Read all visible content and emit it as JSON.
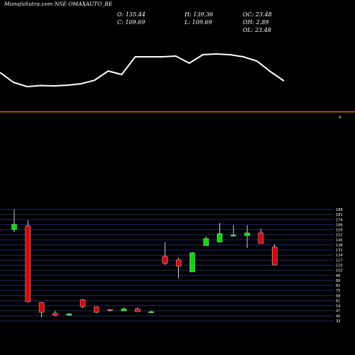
{
  "header": {
    "title": "MunafaSutra.com  NSE OMAXAUTO_BE",
    "open": "O: 135.44",
    "high": "H: 139.36",
    "oc": "OC: 23.48",
    "close": "C: 109.69",
    "low": "L: 109.69",
    "oh": "OH: 2.89",
    "ol": "OL: 23.48"
  },
  "indicator_panel": {
    "right_label": "4",
    "line_values": [
      40,
      53,
      68,
      74,
      77,
      78,
      77,
      65,
      75,
      74,
      74,
      74,
      49,
      54,
      41,
      36,
      34,
      33,
      33.5,
      32,
      38,
      52
    ]
  },
  "chart_data": {
    "type": "candlestick",
    "title": "NSE OMAXAUTO_BE",
    "ylim": [
      31,
      188
    ],
    "yticks": [
      "188",
      "181",
      "174",
      "166",
      "159",
      "152",
      "145",
      "138",
      "131",
      "124",
      "117",
      "110",
      "103",
      "96",
      "89",
      "82",
      "75",
      "68",
      "61",
      "54",
      "47",
      "40",
      "33"
    ],
    "grid": true,
    "up_color": "#00dd00",
    "down_color": "#dd0000",
    "candles": [
      {
        "open": 160,
        "high": 188,
        "low": 156,
        "close": 167
      },
      {
        "open": 165,
        "high": 173,
        "low": 57,
        "close": 58
      },
      {
        "open": 57,
        "high": 58,
        "low": 36,
        "close": 43
      },
      {
        "open": 42,
        "high": 45,
        "low": 38,
        "close": 39
      },
      {
        "open": 39,
        "high": 42,
        "low": 39,
        "close": 41
      },
      {
        "open": 61,
        "high": 62,
        "low": 49,
        "close": 51
      },
      {
        "open": 51,
        "high": 51,
        "low": 42,
        "close": 43
      },
      {
        "open": 47,
        "high": 48,
        "low": 44,
        "close": 46
      },
      {
        "open": 45,
        "high": 50,
        "low": 45,
        "close": 48
      },
      {
        "open": 48,
        "high": 50,
        "low": 44,
        "close": 44
      },
      {
        "open": 43,
        "high": 45,
        "low": 42,
        "close": 44
      },
      {
        "open": 122,
        "high": 142,
        "low": 110,
        "close": 112
      },
      {
        "open": 117,
        "high": 120,
        "low": 91,
        "close": 108
      },
      {
        "open": 100,
        "high": 128,
        "low": 100,
        "close": 127
      },
      {
        "open": 137,
        "high": 150,
        "low": 137,
        "close": 147
      },
      {
        "open": 142,
        "high": 169,
        "low": 142,
        "close": 154
      },
      {
        "open": 151,
        "high": 166,
        "low": 150,
        "close": 152
      },
      {
        "open": 151,
        "high": 166,
        "low": 134,
        "close": 155
      },
      {
        "open": 155,
        "high": 161,
        "low": 140,
        "close": 140
      },
      {
        "open": 135,
        "high": 139,
        "low": 110,
        "close": 110
      }
    ]
  }
}
